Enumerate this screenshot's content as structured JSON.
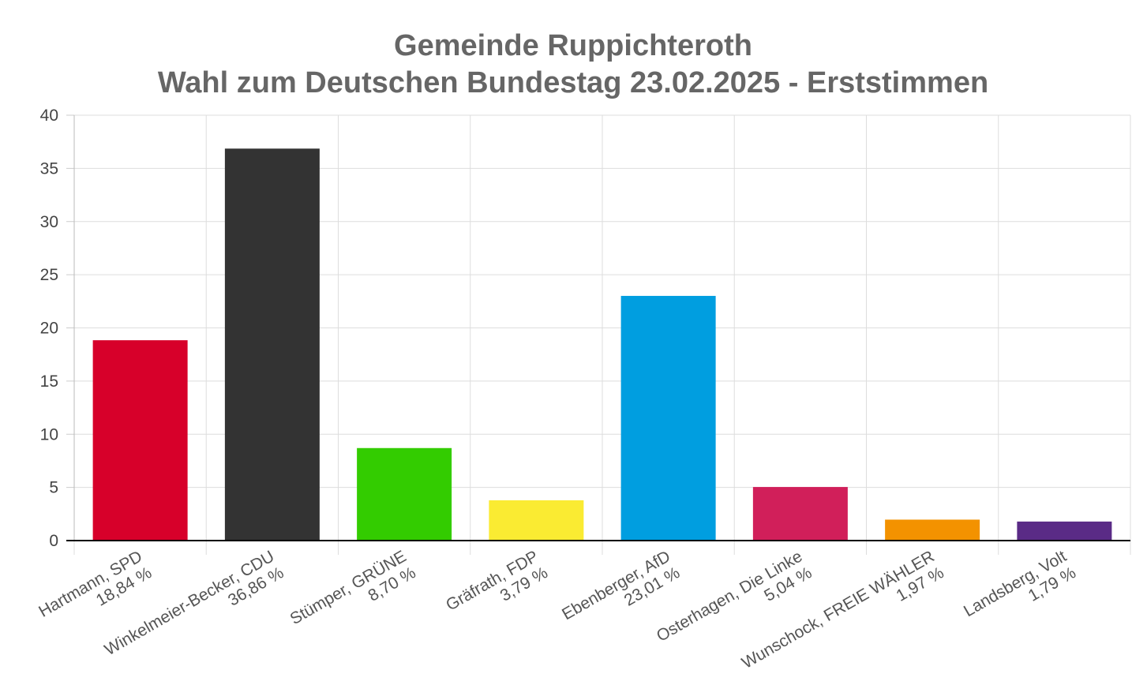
{
  "chart_data": {
    "type": "bar",
    "title": "Gemeinde Ruppichteroth",
    "subtitle": "Wahl zum Deutschen Bundestag 23.02.2025  - Erststimmen",
    "xlabel": "",
    "ylabel": "",
    "ylim": [
      0,
      40
    ],
    "yticks": [
      "0",
      "5",
      "10",
      "15",
      "20",
      "25",
      "30",
      "35",
      "40"
    ],
    "grid": true,
    "legend": "none",
    "categories": [
      {
        "name": "Hartmann, SPD",
        "label": "18,84 %",
        "value": 18.84,
        "color": "#d7002a"
      },
      {
        "name": "Winkelmeier-Becker, CDU",
        "label": "36,86 %",
        "value": 36.86,
        "color": "#333333"
      },
      {
        "name": "Stümper, GRÜNE",
        "label": "8,70 %",
        "value": 8.7,
        "color": "#33cc00"
      },
      {
        "name": "Gräfrath, FDP",
        "label": "3,79 %",
        "value": 3.79,
        "color": "#faeb32"
      },
      {
        "name": "Ebenberger, AfD",
        "label": "23,01 %",
        "value": 23.01,
        "color": "#009ee0"
      },
      {
        "name": "Osterhagen, Die Linke",
        "label": "5,04 %",
        "value": 5.04,
        "color": "#d11f5a"
      },
      {
        "name": "Wunschock, FREIE WÄHLER",
        "label": "1,97 %",
        "value": 1.97,
        "color": "#f39200"
      },
      {
        "name": "Landsberg, Volt",
        "label": "1,79 %",
        "value": 1.79,
        "color": "#5a2b86"
      }
    ]
  }
}
